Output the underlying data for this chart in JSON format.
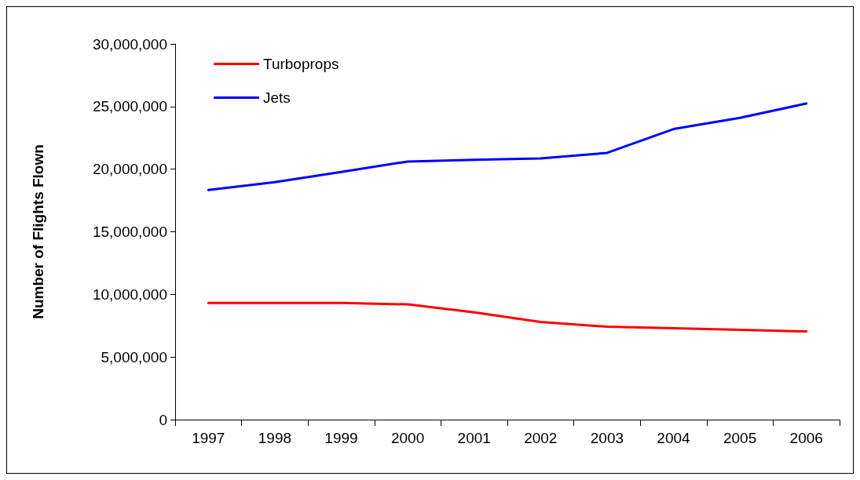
{
  "chart_data": {
    "type": "line",
    "ylabel": "Number of Flights Flown",
    "categories": [
      "1997",
      "1998",
      "1999",
      "2000",
      "2001",
      "2002",
      "2003",
      "2004",
      "2005",
      "2006"
    ],
    "series": [
      {
        "name": "Turboprops",
        "color": "#ff0000",
        "values": [
          9320000,
          9320000,
          9320000,
          9200000,
          8560000,
          7800000,
          7420000,
          7290000,
          7170000,
          7040000
        ]
      },
      {
        "name": "Jets",
        "color": "#0000ff",
        "values": [
          18330000,
          18960000,
          19780000,
          20610000,
          20740000,
          20860000,
          21300000,
          23200000,
          24100000,
          25240000
        ]
      }
    ],
    "ylim": [
      0,
      30000000
    ],
    "yticks": [
      0,
      {
        "value": 5000000,
        "label": "5,000,000"
      },
      {
        "value": 10000000,
        "label": "10,000,000"
      },
      {
        "value": 15000000,
        "label": "15,000,000"
      },
      {
        "value": 20000000,
        "label": "20,000,000"
      },
      {
        "value": 25000000,
        "label": "25,000,000"
      },
      {
        "value": 30000000,
        "label": "30,000,000"
      }
    ],
    "grid": false,
    "legend": "top left",
    "marker": "none",
    "line_style": "solid"
  }
}
